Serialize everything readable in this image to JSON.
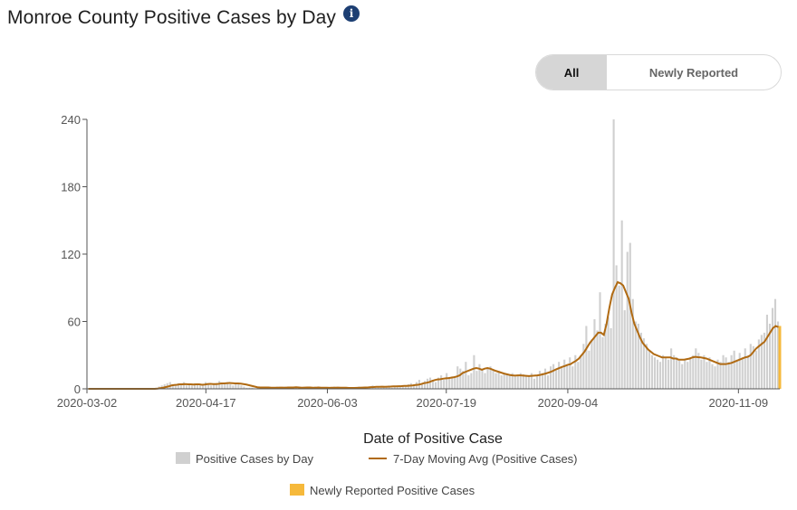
{
  "header": {
    "title": "Monroe County Positive Cases by Day",
    "info_icon": "info-icon"
  },
  "toggle": {
    "options": [
      "All",
      "Newly Reported"
    ],
    "selected": "All"
  },
  "colors": {
    "bars": "#d0d0d0",
    "line": "#b06a12",
    "newly_reported": "#f6b93b"
  },
  "chart_data": {
    "type": "bar",
    "title": "Monroe County Positive Cases by Day",
    "xlabel": "Date of Positive Case",
    "ylabel": "",
    "ylim": [
      0,
      240
    ],
    "yticks": [
      0,
      60,
      120,
      180,
      240
    ],
    "x_start": "2020-03-02",
    "x_end": "2020-11-24",
    "xticks": [
      "2020-03-02",
      "2020-04-17",
      "2020-06-03",
      "2020-07-19",
      "2020-09-04",
      "2020-11-09"
    ],
    "grid": false,
    "legend_position": "bottom",
    "series": [
      {
        "name": "Positive Cases by Day",
        "kind": "bar",
        "values": [
          0,
          0,
          0,
          0,
          0,
          0,
          0,
          0,
          0,
          0,
          0,
          0,
          0,
          0,
          0,
          0,
          0,
          0,
          0,
          0,
          0,
          0,
          0,
          0,
          0,
          1,
          2,
          3,
          4,
          5,
          6,
          4,
          3,
          5,
          4,
          6,
          3,
          4,
          3,
          5,
          4,
          3,
          4,
          6,
          5,
          3,
          4,
          5,
          7,
          4,
          5,
          6,
          4,
          3,
          5,
          4,
          3,
          2,
          1,
          1,
          1,
          0,
          1,
          2,
          1,
          1,
          0,
          1,
          1,
          2,
          1,
          0,
          2,
          1,
          1,
          2,
          1,
          0,
          1,
          1,
          1,
          0,
          1,
          2,
          0,
          1,
          1,
          0,
          1,
          1,
          2,
          0,
          1,
          1,
          0,
          1,
          0,
          1,
          1,
          2,
          1,
          2,
          2,
          1,
          3,
          1,
          2,
          1,
          2,
          2,
          3,
          1,
          2,
          2,
          3,
          2,
          3,
          4,
          5,
          3,
          6,
          8,
          5,
          7,
          9,
          10,
          8,
          6,
          10,
          12,
          8,
          14,
          9,
          11,
          10,
          20,
          18,
          16,
          24,
          12,
          14,
          30,
          16,
          22,
          18,
          14,
          19,
          20,
          17,
          14,
          16,
          12,
          14,
          13,
          12,
          14,
          11,
          12,
          14,
          13,
          11,
          12,
          14,
          9,
          12,
          16,
          14,
          18,
          12,
          20,
          22,
          18,
          24,
          20,
          26,
          22,
          28,
          20,
          30,
          24,
          30,
          40,
          56,
          34,
          44,
          62,
          52,
          86,
          46,
          58,
          64,
          54,
          240,
          110,
          92,
          150,
          70,
          122,
          130,
          80,
          60,
          58,
          50,
          45,
          40,
          34,
          30,
          28,
          26,
          24,
          30,
          28,
          26,
          36,
          30,
          28,
          25,
          22,
          26,
          24,
          28,
          30,
          36,
          32,
          26,
          30,
          24,
          28,
          22,
          20,
          26,
          24,
          30,
          28,
          24,
          30,
          34,
          26,
          32,
          28,
          36,
          30,
          40,
          38,
          34,
          44,
          48,
          50,
          66,
          58,
          72,
          80,
          60
        ],
        "note_values": "approximate daily counts read from the chart"
      },
      {
        "name": "7-Day Moving Avg (Positive Cases)",
        "kind": "line",
        "values": [
          0,
          0,
          0,
          0,
          0,
          0,
          0,
          0,
          0,
          0,
          0,
          0,
          0,
          0,
          0,
          0,
          0,
          0,
          0,
          0,
          0,
          0,
          0,
          0,
          0,
          0.2,
          0.6,
          1,
          1.6,
          2.2,
          3,
          3.4,
          3.6,
          4,
          4,
          4.2,
          4,
          4,
          3.8,
          4,
          4,
          3.6,
          3.8,
          4.2,
          4.4,
          4.2,
          4.2,
          4.4,
          4.8,
          4.8,
          5,
          5.2,
          5,
          4.8,
          4.8,
          4.6,
          4.2,
          3.8,
          3.2,
          2.6,
          2,
          1.4,
          1.2,
          1.2,
          1.2,
          1.2,
          1,
          1,
          1,
          1.1,
          1.1,
          1,
          1.2,
          1.2,
          1.2,
          1.4,
          1.2,
          1,
          1.1,
          1.2,
          1.2,
          1,
          1,
          1.2,
          1,
          1,
          1,
          0.9,
          1,
          1,
          1.1,
          1,
          1,
          1,
          0.8,
          0.8,
          0.8,
          0.9,
          1,
          1.1,
          1.2,
          1.3,
          1.5,
          1.6,
          1.8,
          1.8,
          1.9,
          1.8,
          1.9,
          2,
          2.2,
          2.2,
          2.3,
          2.4,
          2.6,
          2.6,
          2.8,
          3,
          3.4,
          3.6,
          4.2,
          5,
          5.4,
          6,
          7,
          7.8,
          8.4,
          8.6,
          9,
          9.4,
          9.6,
          10,
          10.4,
          11,
          12,
          14,
          15,
          16,
          17,
          18,
          18.5,
          18,
          17,
          18,
          18.5,
          18,
          17,
          16,
          15.2,
          14.4,
          13.6,
          13,
          12.4,
          12,
          11.8,
          12,
          12,
          11.8,
          11.6,
          11.4,
          11.6,
          11.8,
          12,
          12.4,
          13,
          13.6,
          14.4,
          15.2,
          16.4,
          17.6,
          18.6,
          19.6,
          20.4,
          21.4,
          22,
          23.6,
          25,
          27,
          30,
          33,
          37,
          41,
          44,
          47,
          50,
          50,
          48,
          58,
          72,
          84,
          90,
          95,
          94,
          92,
          86,
          80,
          68,
          58,
          52,
          46,
          41,
          38,
          35,
          33,
          31,
          30,
          29,
          28,
          28,
          28,
          28,
          27,
          27,
          26,
          26,
          26,
          26.5,
          27,
          28,
          28.5,
          28.2,
          28,
          27.5,
          27,
          26,
          25,
          24,
          23,
          22,
          22,
          22,
          22.5,
          23,
          24,
          25,
          26,
          27,
          28,
          28.5,
          30,
          33,
          36,
          38,
          40,
          42,
          46,
          50,
          54,
          56,
          55
        ]
      },
      {
        "name": "Newly Reported Positive Cases",
        "kind": "bar",
        "values_last_days": [
          56
        ]
      }
    ]
  },
  "legend": {
    "items": [
      "Positive Cases by Day",
      "7-Day Moving Avg (Positive Cases)",
      "Newly Reported Positive Cases"
    ]
  }
}
